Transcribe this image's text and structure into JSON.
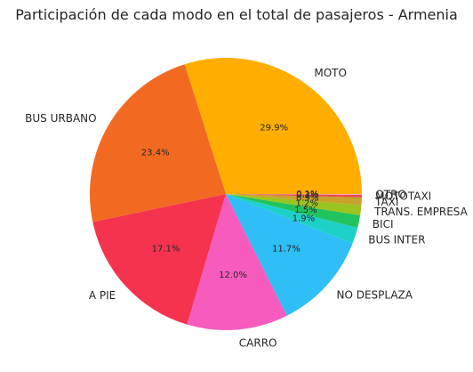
{
  "chart_data": {
    "type": "pie",
    "title": "Participación de cada modo en el total de pasajeros - Armenia",
    "slices": [
      {
        "label": "MOTO",
        "value": 29.9,
        "pct_label": "29.9%",
        "color": "#FFAE00"
      },
      {
        "label": "BUS URBANO",
        "value": 23.4,
        "pct_label": "23.4%",
        "color": "#F26A21"
      },
      {
        "label": "A PIE",
        "value": 17.1,
        "pct_label": "17.1%",
        "color": "#F5334F"
      },
      {
        "label": "CARRO",
        "value": 12.0,
        "pct_label": "12.0%",
        "color": "#F75BBE"
      },
      {
        "label": "NO DESPLAZA",
        "value": 11.7,
        "pct_label": "11.7%",
        "color": "#2FBEF6"
      },
      {
        "label": "BUS INTER",
        "value": 1.9,
        "pct_label": "1.9%",
        "color": "#1DD1C9"
      },
      {
        "label": "BICI",
        "value": 1.5,
        "pct_label": "1.5%",
        "color": "#21C35E"
      },
      {
        "label": "TRANS. EMPRESA",
        "value": 1.2,
        "pct_label": "1.2%",
        "color": "#9AC41F"
      },
      {
        "label": "TAXI",
        "value": 0.9,
        "pct_label": "0.9%",
        "color": "#C9A32C"
      },
      {
        "label": "MOTOTAXI",
        "value": 0.3,
        "pct_label": "0.3%",
        "color": "#E84B4B"
      },
      {
        "label": "OTRO",
        "value": 0.1,
        "pct_label": "0.1%",
        "color": "#F4A4C0"
      }
    ],
    "start_angle_deg": 0,
    "direction": "counterclockwise"
  }
}
